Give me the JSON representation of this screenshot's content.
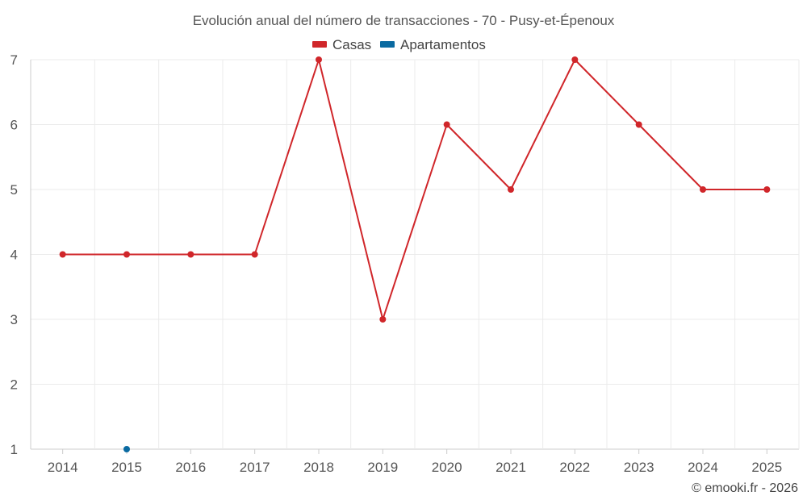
{
  "chart_data": {
    "type": "line",
    "title": "Evolución anual del número de transacciones - 70 - Pusy-et-Épenoux",
    "categories": [
      "2014",
      "2015",
      "2016",
      "2017",
      "2018",
      "2019",
      "2020",
      "2021",
      "2022",
      "2023",
      "2024",
      "2025"
    ],
    "series": [
      {
        "name": "Casas",
        "color": "#d0262a",
        "values": [
          4,
          4,
          4,
          4,
          7,
          3,
          6,
          5,
          7,
          6,
          5,
          5
        ]
      },
      {
        "name": "Apartamentos",
        "color": "#0a6aa1",
        "values": [
          null,
          1,
          null,
          null,
          null,
          null,
          null,
          null,
          null,
          null,
          null,
          null
        ]
      }
    ],
    "ylim": [
      1,
      7
    ],
    "yticks": [
      1,
      2,
      3,
      4,
      5,
      6,
      7
    ],
    "grid": true,
    "legend_position": "top-center"
  },
  "credit": "© emooki.fr - 2026"
}
